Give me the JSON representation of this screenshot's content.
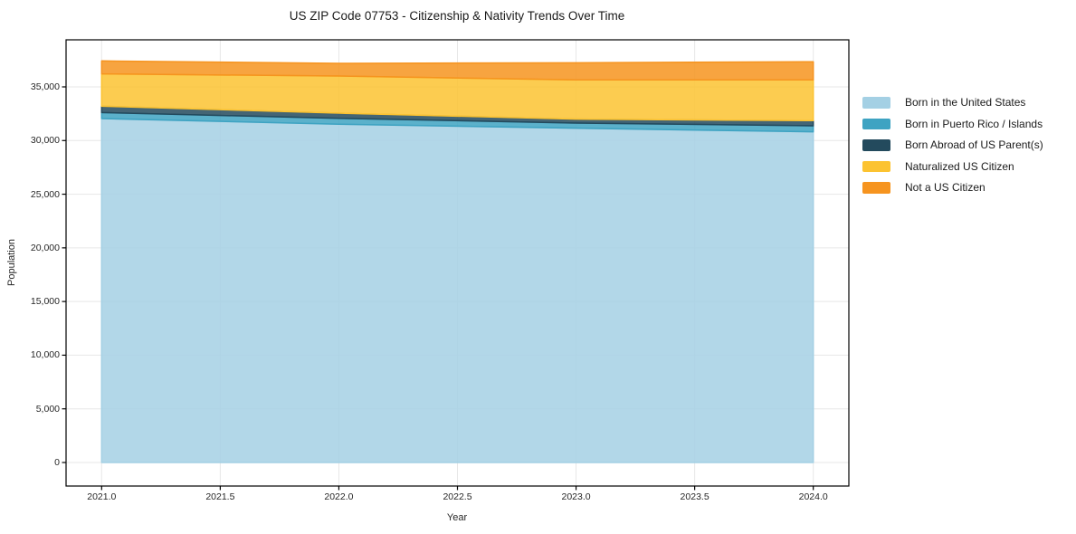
{
  "title": "US ZIP Code 07753 - Citizenship & Nativity Trends Over Time",
  "chart_data": {
    "type": "area",
    "stacked": true,
    "title": "US ZIP Code 07753 - Citizenship & Nativity Trends Over Time",
    "xlabel": "Year",
    "ylabel": "Population",
    "x": [
      2021,
      2022,
      2023,
      2024
    ],
    "series": [
      {
        "name": "Born in the United States",
        "color": "#a4d0e4",
        "values": [
          32050,
          31520,
          31150,
          30810
        ]
      },
      {
        "name": "Born in Puerto Rico / Islands",
        "color": "#3ea3c2",
        "values": [
          560,
          550,
          480,
          565
        ]
      },
      {
        "name": "Born Abroad of US Parent(s)",
        "color": "#234a5d",
        "values": [
          590,
          480,
          360,
          480
        ]
      },
      {
        "name": "Naturalized US Citizen",
        "color": "#fcc331",
        "values": [
          3010,
          3460,
          3660,
          3795
        ]
      },
      {
        "name": "Not a US Citizen",
        "color": "#f6941f",
        "values": [
          1210,
          1180,
          1600,
          1690
        ]
      }
    ],
    "x_tick_labels": [
      "2021.0",
      "2021.5",
      "2022.0",
      "2022.5",
      "2023.0",
      "2023.5",
      "2024.0"
    ],
    "x_tick_values": [
      2021,
      2021.5,
      2022,
      2022.5,
      2023,
      2023.5,
      2024
    ],
    "y_tick_labels": [
      "0",
      "5,000",
      "10,000",
      "15,000",
      "20,000",
      "25,000",
      "30,000",
      "35,000"
    ],
    "y_tick_values": [
      0,
      5000,
      10000,
      15000,
      20000,
      25000,
      30000,
      35000
    ],
    "xlim": [
      2020.85,
      2024.15
    ],
    "ylim": [
      -2193,
      39385
    ],
    "grid": true,
    "legend_position": "right",
    "fill_opacity": 0.85,
    "grid_color": "#e7e7e7",
    "spine_color": "#000000"
  },
  "legend": {
    "items": [
      "Born in the United States",
      "Born in Puerto Rico / Islands",
      "Born Abroad of US Parent(s)",
      "Naturalized US Citizen",
      "Not a US Citizen"
    ]
  }
}
